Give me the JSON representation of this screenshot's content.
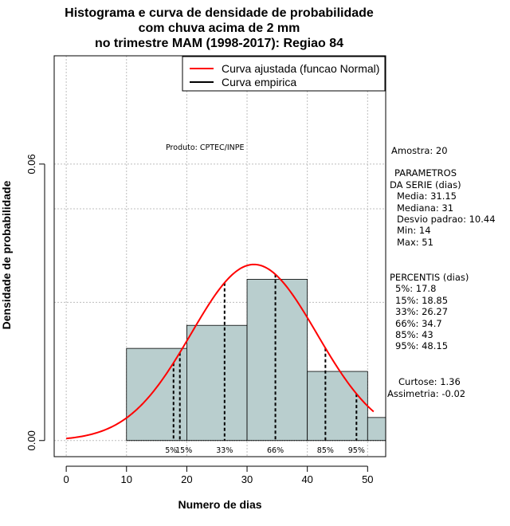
{
  "chart_data": {
    "type": "bar",
    "title": [
      "Histograma e curva de densidade de probabilidade",
      "com chuva acima de 2 mm",
      "no trimestre MAM (1998-2017): Regiao 84"
    ],
    "xlabel": "Numero de dias",
    "ylabel": "Densidade de probabilidade",
    "xlim": [
      -2,
      53
    ],
    "ylim": [
      -0.0035,
      0.0835
    ],
    "x_ticks": [
      0,
      10,
      20,
      30,
      40,
      50
    ],
    "x_tick_labels": [
      "0",
      "10",
      "20",
      "30",
      "40",
      "50"
    ],
    "y_ticks": [
      0.0,
      0.06
    ],
    "y_tick_labels": [
      "0.00",
      "0.06"
    ],
    "grid": true,
    "bins": [
      {
        "start": 10,
        "end": 20,
        "density": 0.02
      },
      {
        "start": 20,
        "end": 30,
        "density": 0.025
      },
      {
        "start": 30,
        "end": 40,
        "density": 0.035
      },
      {
        "start": 40,
        "end": 50,
        "density": 0.015
      },
      {
        "start": 50,
        "end": 53,
        "density": 0.005
      }
    ],
    "normal_curve": {
      "name": "Curva ajustada (funcao Normal)",
      "mean": 31.15,
      "sd": 10.44,
      "x_min": 0,
      "x_max": 51,
      "color": "#ff0000"
    },
    "empirical_curve": {
      "name": "Curva empirica",
      "color": "#000000"
    },
    "percentiles": [
      {
        "label": "5%",
        "value": 17.8
      },
      {
        "label": "15%",
        "value": 18.85
      },
      {
        "label": "33%",
        "value": 26.27
      },
      {
        "label": "66%",
        "value": 34.7
      },
      {
        "label": "85%",
        "value": 43
      },
      {
        "label": "95%",
        "value": 48.15
      }
    ],
    "bar_color": "#b9cece",
    "legend_position": "top-right"
  },
  "product_label": "Produto: CPTEC/INPE",
  "stats": {
    "amostra": "Amostra: 20",
    "param_title_1": "PARAMETROS",
    "param_title_2": "DA SERIE (dias)",
    "media": "Media: 31.15",
    "mediana": "Mediana: 31",
    "desvio": "Desvio padrao: 10.44",
    "min": "Min: 14",
    "max": "Max: 51",
    "percentis_title": "PERCENTIS (dias)",
    "p5": "5%: 17.8",
    "p15": "15%: 18.85",
    "p33": "33%: 26.27",
    "p66": "66%: 34.7",
    "p85": "85%: 43",
    "p95": "95%: 48.15",
    "curtose": "Curtose: 1.36",
    "assimetria": "Assimetria: -0.02"
  }
}
